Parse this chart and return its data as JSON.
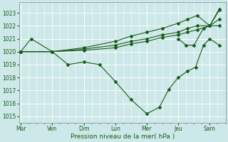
{
  "xlabel": "Pression niveau de la mer( hPa )",
  "bg_color": "#cce8e8",
  "grid_color": "#ffffff",
  "line_color": "#1a5c1a",
  "ylim": [
    1014.5,
    1023.8
  ],
  "yticks": [
    1015,
    1016,
    1017,
    1018,
    1019,
    1020,
    1021,
    1022,
    1023
  ],
  "day_labels": [
    "Mar",
    "Ven",
    "Dim",
    "Lun",
    "Mer",
    "Jeu",
    "Sam"
  ],
  "day_positions": [
    0,
    1,
    2,
    3,
    4,
    5,
    6
  ],
  "xlim": [
    -0.05,
    6.5
  ],
  "series": [
    {
      "x": [
        0,
        0.33,
        1.0,
        1.5,
        2.0,
        2.5,
        3.0,
        3.5,
        4.0,
        4.4,
        4.7,
        5.0,
        5.3,
        5.55,
        5.8,
        6.0,
        6.3
      ],
      "y": [
        1020.0,
        1021.0,
        1020.0,
        1019.0,
        1019.2,
        1019.0,
        1017.7,
        1016.3,
        1015.2,
        1015.7,
        1017.1,
        1018.0,
        1018.5,
        1018.8,
        1020.5,
        1021.0,
        1020.5
      ]
    },
    {
      "x": [
        0,
        1.0,
        2.0,
        3.0,
        3.5,
        4.0,
        4.5,
        5.0,
        5.3,
        5.6,
        6.0,
        6.3
      ],
      "y": [
        1020.0,
        1020.0,
        1020.3,
        1020.8,
        1021.2,
        1021.5,
        1021.8,
        1022.2,
        1022.5,
        1022.8,
        1022.0,
        1023.2
      ]
    },
    {
      "x": [
        0,
        1.0,
        2.0,
        3.0,
        3.5,
        4.0,
        4.5,
        5.0,
        5.3,
        5.6,
        6.0,
        6.3
      ],
      "y": [
        1020.0,
        1020.0,
        1020.2,
        1020.5,
        1020.8,
        1021.0,
        1021.3,
        1021.5,
        1021.8,
        1022.0,
        1022.0,
        1022.5
      ]
    },
    {
      "x": [
        0,
        1.0,
        2.0,
        3.0,
        3.5,
        4.0,
        4.5,
        5.0,
        5.3,
        5.6,
        6.0,
        6.3
      ],
      "y": [
        1020.0,
        1020.0,
        1020.1,
        1020.3,
        1020.6,
        1020.8,
        1021.1,
        1021.3,
        1021.5,
        1021.7,
        1022.0,
        1022.0
      ]
    },
    {
      "x": [
        5.0,
        5.25,
        5.5,
        5.8,
        6.0,
        6.3
      ],
      "y": [
        1021.0,
        1020.5,
        1020.5,
        1021.8,
        1022.0,
        1023.3
      ]
    }
  ]
}
